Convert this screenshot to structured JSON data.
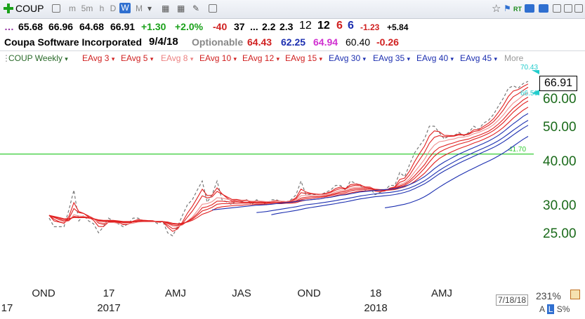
{
  "toolbar": {
    "symbol": "COUP",
    "periods": [
      "m",
      "5m",
      "h",
      "D",
      "W",
      "M"
    ],
    "active_period": "W",
    "rt_label": "RT"
  },
  "quote": {
    "open": "65.68",
    "high": "66.96",
    "low": "64.68",
    "close": "66.91",
    "change": "+1.30",
    "change_pct": "+2.0%",
    "v1": "-40",
    "v2": "37",
    "ellipsis": "...",
    "v3": "2.2",
    "v4": "2.3",
    "v5": "12",
    "v6": "12",
    "v7": "6",
    "v8": "6",
    "v9": "-1.23",
    "v10": "+5.84"
  },
  "info": {
    "company": "Coupa Software Incorporated",
    "date": "9/4/18",
    "optionable": "Optionable",
    "p1": "64.43",
    "p2": "62.25",
    "p3": "64.94",
    "p4": "60.40",
    "p5": "-0.26"
  },
  "legend": {
    "items": [
      "COUP Weekly",
      "EAvg 3",
      "EAvg 5",
      "EAvg 8",
      "EAvg 10",
      "EAvg 12",
      "EAvg 15",
      "EAvg 30",
      "EAvg 35",
      "EAvg 40",
      "EAvg 45",
      "More"
    ]
  },
  "colors": {
    "price": "#777777",
    "short_emas": "#e02020",
    "short_emas_light": "#f09090",
    "long_emas": "#1c2fb0",
    "hline": "#33cc33",
    "axis_text": "#1a6a1a",
    "cyan": "#22cccc"
  },
  "chart_data": {
    "type": "line",
    "y_axis_scale": "log",
    "ylim": [
      22,
      72
    ],
    "y_ticks": [
      "25.00",
      "30.00",
      "40.00",
      "50.00",
      "60.00"
    ],
    "x_tick_labels": [
      "OND",
      "17",
      "AMJ",
      "JAS",
      "OND",
      "18",
      "AMJ"
    ],
    "x_year_labels": [
      "17",
      "2017",
      "2018"
    ],
    "last_price": "66.91",
    "annotations": {
      "high": "70.43",
      "low": "66.50",
      "hline": "41.70"
    },
    "hline_value": 41.7,
    "series": [
      {
        "values": [
          27.5,
          26,
          26,
          26,
          29,
          33,
          27,
          28,
          27,
          26.5,
          25,
          26,
          27.5,
          27,
          26.5,
          26,
          26.5,
          27.5,
          27.5,
          27,
          27,
          27,
          26.5,
          27,
          25,
          24.5,
          26,
          28,
          30,
          31,
          33,
          35,
          30.5,
          32,
          35,
          31,
          30.5,
          30,
          31,
          30.5,
          31,
          30,
          31,
          30.5,
          30,
          31,
          31,
          30.5,
          30.5,
          31,
          32,
          35,
          32,
          32,
          32,
          32,
          32.5,
          33,
          34,
          34,
          33,
          35,
          34.5,
          34,
          33,
          33.5,
          32,
          32.5,
          33,
          34,
          34,
          37,
          36,
          39,
          42,
          44,
          46,
          50,
          50,
          48,
          46,
          47,
          47,
          48,
          47,
          48,
          50,
          49,
          51,
          52,
          54,
          57,
          60,
          64,
          65,
          64,
          66,
          66.91
        ]
      },
      {
        "values": [
          28,
          27,
          26.8,
          26.6,
          27.8,
          30.4,
          28.7,
          28.35,
          27.7,
          27.1,
          26.05,
          26.02,
          26.76,
          26.88,
          26.69,
          26.34,
          26.42,
          26.96,
          27.23,
          27.12,
          27.06,
          27.03,
          26.77,
          26.88,
          25.94,
          25.22,
          25.61,
          26.8,
          28.4,
          29.7,
          31.35,
          33.18,
          31.84,
          31.92,
          33.46,
          32.23,
          31.36,
          30.68,
          30.84,
          30.67,
          30.84,
          30.42,
          30.71,
          30.6,
          30.3,
          30.65,
          30.83,
          30.66,
          30.58,
          30.79,
          31.4,
          33.2,
          32.6,
          32.3,
          32.15,
          32.08,
          32.29,
          32.64,
          33.32,
          33.66,
          33.33,
          34.17,
          34.33,
          34.17,
          33.58,
          33.54,
          32.77,
          32.64,
          32.82,
          33.41,
          33.7,
          35.35,
          35.68,
          37.34,
          39.67,
          41.83,
          43.92,
          46.96,
          48.48,
          48.24,
          47.12,
          47.06,
          47.03,
          47.52,
          47.26,
          47.63,
          48.81,
          48.91,
          49.95,
          50.98,
          52.49,
          54.74,
          57.37,
          60.69,
          62.84,
          63.42,
          64.71,
          65.81
        ]
      },
      {
        "values": [
          28,
          27.3,
          26.87,
          26.58,
          27.38,
          29.25,
          28.5,
          28.33,
          27.89,
          27.42,
          26.61,
          26.41,
          26.77,
          26.85,
          26.73,
          26.49,
          26.49,
          26.83,
          27.05,
          27.03,
          27.02,
          27.01,
          26.84,
          26.89,
          26.26,
          25.67,
          25.78,
          26.52,
          27.68,
          28.79,
          30.19,
          31.79,
          31.36,
          31.58,
          32.72,
          32.15,
          31.6,
          31.07,
          31.05,
          30.87,
          30.91,
          30.61,
          30.74,
          30.66,
          30.44,
          30.63,
          30.75,
          30.67,
          30.61,
          30.74,
          31.16,
          32.44,
          32.29,
          32.19,
          32.13,
          32.09,
          32.23,
          32.49,
          32.99,
          33.33,
          33.22,
          33.81,
          34.04,
          34.03,
          33.69,
          33.63,
          33.09,
          32.89,
          32.93,
          33.29,
          33.53,
          34.69,
          35.13,
          36.42,
          38.28,
          40.19,
          42.13,
          44.75,
          46.5,
          47,
          46.67,
          46.78,
          46.85,
          47.23,
          47.16,
          47.44,
          48.29,
          48.53,
          49.35,
          50.24,
          51.49,
          53.33,
          55.55,
          58.37,
          60.58,
          61.72,
          63.15,
          64.43
        ]
      },
      {
        "values": [
          28,
          27.6,
          27.2,
          26.8,
          27,
          28.1,
          27.9,
          27.8,
          27.6,
          27.3,
          26.8,
          26.6,
          26.7,
          26.7,
          26.6,
          26.5,
          26.5,
          26.6,
          26.8,
          26.9,
          26.9,
          26.9,
          26.9,
          26.9,
          26.5,
          26.1,
          26,
          26.3,
          27,
          27.7,
          28.8,
          30.1,
          30.2,
          30.6,
          31.4,
          31.3,
          31.1,
          30.9,
          30.9,
          30.8,
          30.8,
          30.7,
          30.7,
          30.7,
          30.6,
          30.6,
          30.7,
          30.7,
          30.6,
          30.7,
          30.9,
          31.8,
          31.9,
          31.9,
          31.9,
          32,
          32,
          32.2,
          32.6,
          32.9,
          32.9,
          33.4,
          33.6,
          33.7,
          33.5,
          33.5,
          33.1,
          33,
          33,
          33.2,
          33.4,
          34.2,
          34.6,
          35.6,
          37.1,
          38.6,
          40.3,
          42.5,
          44.2,
          45.2,
          45.4,
          45.8,
          46,
          46.5,
          46.6,
          46.9,
          47.6,
          48,
          48.7,
          49.4,
          50.5,
          52,
          53.8,
          56.1,
          58.1,
          59.5,
          61.1,
          62.25
        ]
      },
      {
        "values": [
          28,
          27.6,
          27.3,
          27,
          27.1,
          27.8,
          27.7,
          27.7,
          27.6,
          27.4,
          27,
          26.9,
          26.9,
          26.9,
          26.8,
          26.7,
          26.7,
          26.8,
          26.9,
          26.9,
          26.9,
          26.9,
          26.9,
          26.9,
          26.6,
          26.3,
          26.2,
          26.4,
          26.9,
          27.5,
          28.3,
          29.4,
          29.6,
          30,
          30.7,
          30.7,
          30.6,
          30.5,
          30.6,
          30.5,
          30.5,
          30.5,
          30.5,
          30.5,
          30.4,
          30.5,
          30.5,
          30.5,
          30.5,
          30.6,
          30.7,
          31.3,
          31.5,
          31.6,
          31.6,
          31.7,
          31.8,
          32,
          32.3,
          32.6,
          32.7,
          33.1,
          33.3,
          33.4,
          33.4,
          33.4,
          33.2,
          33.1,
          33.1,
          33.2,
          33.4,
          33.9,
          34.3,
          35.1,
          36.2,
          37.5,
          38.9,
          40.8,
          42.4,
          43.5,
          44,
          44.5,
          44.9,
          45.4,
          45.7,
          46,
          46.6,
          47.1,
          47.7,
          48.4,
          49.4,
          50.7,
          52.3,
          54.3,
          56.2,
          57.7,
          59.3,
          60.4
        ]
      },
      {
        "values": [
          28,
          27.7,
          27.5,
          27.2,
          27.3,
          27.7,
          27.6,
          27.6,
          27.6,
          27.4,
          27.1,
          27,
          27,
          27,
          26.9,
          26.8,
          26.8,
          26.8,
          26.9,
          26.9,
          26.9,
          26.9,
          26.9,
          26.9,
          26.7,
          26.5,
          26.4,
          26.5,
          26.9,
          27.3,
          28,
          28.8,
          29.1,
          29.5,
          30.1,
          30.2,
          30.2,
          30.2,
          30.3,
          30.3,
          30.3,
          30.3,
          30.3,
          30.3,
          30.3,
          30.4,
          30.4,
          30.4,
          30.4,
          30.5,
          30.6,
          31,
          31.2,
          31.3,
          31.4,
          31.5,
          31.6,
          31.8,
          32.1,
          32.3,
          32.4,
          32.8,
          33,
          33.1,
          33.1,
          33.2,
          33.1,
          33,
          33,
          33.1,
          33.3,
          33.7,
          34,
          34.7,
          35.6,
          36.7,
          38,
          39.6,
          41.1,
          42.2,
          42.9,
          43.5,
          44,
          44.5,
          44.9,
          45.3,
          45.9,
          46.4,
          47,
          47.7,
          48.6,
          49.8,
          51.2,
          53,
          54.8,
          56.3,
          57.8,
          58.9
        ]
      },
      {
        "values": [
          28,
          27.8,
          27.6,
          27.4,
          27.4,
          27.6,
          27.6,
          27.6,
          27.5,
          27.4,
          27.2,
          27.1,
          27.1,
          27.1,
          27,
          26.9,
          26.9,
          26.9,
          26.9,
          26.9,
          26.9,
          26.9,
          26.9,
          26.9,
          26.8,
          26.6,
          26.5,
          26.6,
          26.8,
          27.1,
          27.6,
          28.2,
          28.5,
          28.9,
          29.4,
          29.6,
          29.7,
          29.8,
          29.9,
          29.9,
          30,
          30,
          30.1,
          30.1,
          30.1,
          30.2,
          30.2,
          30.2,
          30.3,
          30.3,
          30.4,
          30.7,
          30.9,
          31,
          31.1,
          31.2,
          31.4,
          31.5,
          31.8,
          32,
          32.1,
          32.4,
          32.6,
          32.8,
          32.8,
          32.9,
          32.9,
          32.9,
          32.9,
          33,
          33.1,
          33.4,
          33.7,
          34.2,
          34.9,
          35.8,
          36.8,
          38.1,
          39.4,
          40.5,
          41.3,
          42,
          42.6,
          43.2,
          43.7,
          44.2,
          44.8,
          45.3,
          45.9,
          46.6,
          47.4,
          48.4,
          49.6,
          51.1,
          52.7,
          54.1,
          55.5,
          56.6
        ]
      },
      {
        "values": [
          null,
          null,
          null,
          null,
          null,
          null,
          null,
          null,
          null,
          null,
          null,
          null,
          null,
          null,
          null,
          null,
          null,
          null,
          null,
          null,
          null,
          null,
          null,
          null,
          null,
          null,
          null,
          null,
          null,
          null,
          null,
          null,
          null,
          29,
          29.1,
          29.2,
          29.3,
          29.4,
          29.5,
          29.6,
          29.7,
          29.8,
          29.9,
          29.95,
          30,
          30.1,
          30.2,
          30.3,
          30.4,
          30.5,
          30.6,
          30.8,
          30.9,
          31,
          31.1,
          31.2,
          31.4,
          31.5,
          31.7,
          31.9,
          32,
          32.2,
          32.4,
          32.6,
          32.7,
          32.8,
          32.9,
          33,
          33.1,
          33.2,
          33.3,
          33.5,
          33.8,
          34.2,
          34.7,
          35.3,
          36,
          36.9,
          37.9,
          38.8,
          39.6,
          40.3,
          41,
          41.7,
          42.3,
          42.9,
          43.5,
          44.1,
          44.7,
          45.4,
          46.2,
          47.1,
          48.2,
          49.5,
          50.8,
          52,
          53.3,
          54.3
        ]
      },
      {
        "values": [
          null,
          null,
          null,
          null,
          null,
          null,
          null,
          null,
          null,
          null,
          null,
          null,
          null,
          null,
          null,
          null,
          null,
          null,
          null,
          null,
          null,
          null,
          null,
          null,
          null,
          null,
          null,
          null,
          null,
          null,
          null,
          null,
          null,
          null,
          null,
          null,
          null,
          null,
          null,
          null,
          null,
          null,
          28.5,
          28.6,
          28.7,
          28.85,
          29,
          29.15,
          29.3,
          29.45,
          29.6,
          29.8,
          30,
          30.1,
          30.2,
          30.35,
          30.5,
          30.65,
          30.8,
          31,
          31.15,
          31.35,
          31.55,
          31.75,
          31.9,
          32.05,
          32.2,
          32.3,
          32.4,
          32.5,
          32.65,
          32.85,
          33.1,
          33.45,
          33.9,
          34.45,
          35.05,
          35.8,
          36.65,
          37.5,
          38.25,
          38.95,
          39.65,
          40.35,
          40.95,
          41.55,
          42.15,
          42.75,
          43.35,
          44,
          44.7,
          45.5,
          46.45,
          47.55,
          48.7,
          49.8,
          50.95,
          51.95
        ]
      },
      {
        "values": [
          null,
          null,
          null,
          null,
          null,
          null,
          null,
          null,
          null,
          null,
          null,
          null,
          null,
          null,
          null,
          null,
          null,
          null,
          null,
          null,
          null,
          null,
          null,
          null,
          null,
          null,
          null,
          null,
          null,
          null,
          null,
          null,
          null,
          null,
          null,
          null,
          null,
          null,
          null,
          null,
          null,
          null,
          null,
          null,
          null,
          28.1,
          28.3,
          28.45,
          28.6,
          28.75,
          28.9,
          29.1,
          29.3,
          29.45,
          29.6,
          29.75,
          29.9,
          30.05,
          30.2,
          30.4,
          30.55,
          30.75,
          30.95,
          31.15,
          31.3,
          31.45,
          31.6,
          31.7,
          31.8,
          31.9,
          32.05,
          32.25,
          32.5,
          32.85,
          33.3,
          33.8,
          34.35,
          35.05,
          35.85,
          36.65,
          37.35,
          38,
          38.65,
          39.3,
          39.9,
          40.5,
          41.1,
          41.7,
          42.3,
          42.9,
          43.55,
          44.3,
          45.15,
          46.15,
          47.25,
          48.3,
          49.35,
          50.3
        ]
      },
      {
        "values": [
          null,
          null,
          null,
          null,
          null,
          null,
          null,
          null,
          null,
          null,
          null,
          null,
          null,
          null,
          null,
          null,
          null,
          null,
          null,
          null,
          null,
          null,
          null,
          null,
          null,
          null,
          null,
          null,
          null,
          null,
          null,
          null,
          null,
          null,
          null,
          null,
          null,
          null,
          null,
          null,
          null,
          null,
          null,
          null,
          null,
          null,
          null,
          null,
          null,
          null,
          null,
          null,
          null,
          null,
          null,
          null,
          null,
          null,
          null,
          null,
          null,
          null,
          null,
          null,
          null,
          null,
          null,
          null,
          29.4,
          29.55,
          29.7,
          29.9,
          30.1,
          30.35,
          30.7,
          31.1,
          31.6,
          32.2,
          32.9,
          33.6,
          34.3,
          34.95,
          35.6,
          36.25,
          36.85,
          37.45,
          38.05,
          38.65,
          39.25,
          39.85,
          40.5,
          41.2,
          42,
          42.9,
          43.9,
          44.9,
          45.9,
          46.8
        ]
      }
    ]
  }
}
